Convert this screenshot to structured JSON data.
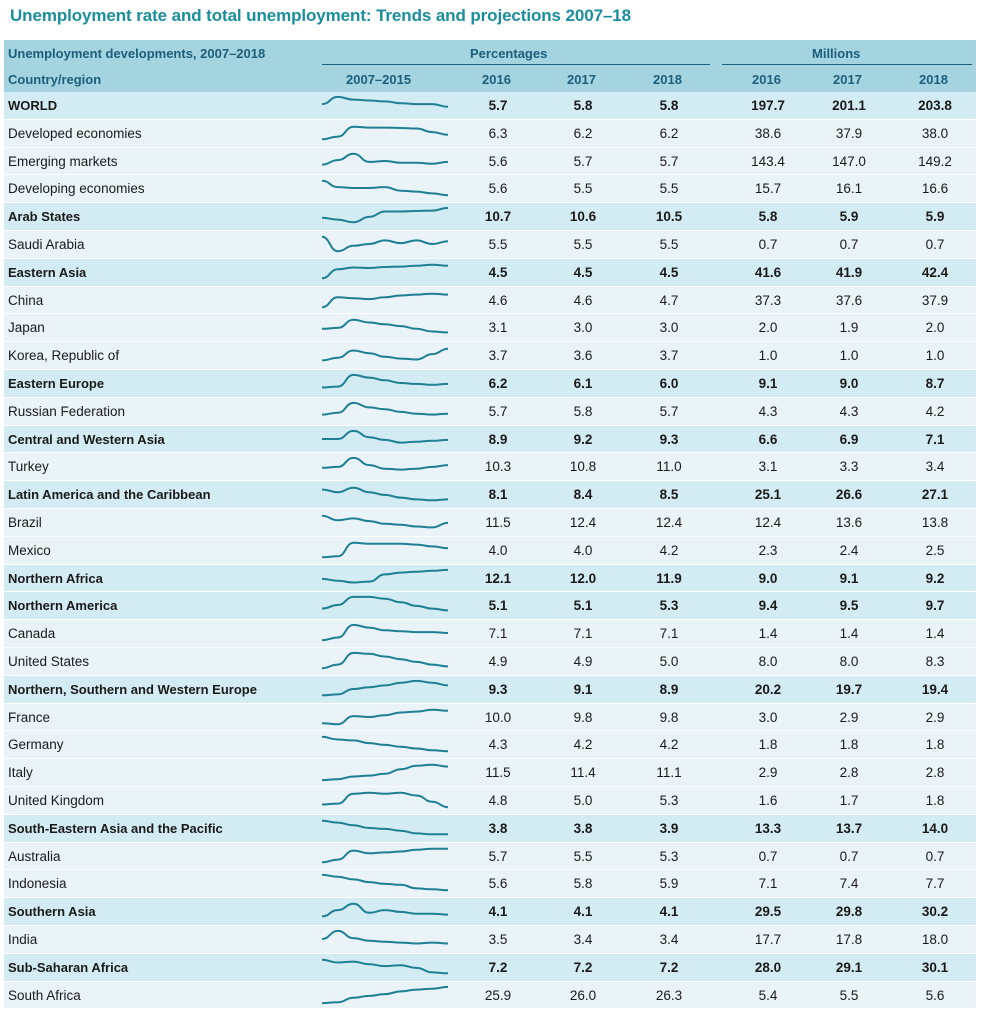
{
  "title": "Unemployment rate and total unemployment: Trends and projections 2007–18",
  "header": {
    "caption": "Unemployment developments, 2007–2018",
    "percentages": "Percentages",
    "millions": "Millions",
    "country_region": "Country/region",
    "trend": "2007–2015",
    "y2016": "2016",
    "y2017": "2017",
    "y2018": "2018",
    "m2016": "2016",
    "m2017": "2017",
    "m2018": "2018"
  },
  "colors": {
    "accent": "#1b8e9e",
    "header_bg": "#a5d4e1",
    "bold_row_bg": "#d3ebf2",
    "row_bg": "#e9f3f8",
    "spark": "#1f7f94"
  },
  "rows": [
    {
      "name": "WORLD",
      "bold": true,
      "p16": "5.7",
      "p17": "5.8",
      "p18": "5.8",
      "m16": "197.7",
      "m17": "201.1",
      "m18": "203.8",
      "trend": [
        0.55,
        0.95,
        0.8,
        0.75,
        0.7,
        0.6,
        0.55,
        0.55,
        0.4
      ]
    },
    {
      "name": "Developed economies",
      "bold": false,
      "p16": "6.3",
      "p17": "6.2",
      "p18": "6.2",
      "m16": "38.6",
      "m17": "37.9",
      "m18": "38.0",
      "trend": [
        0.15,
        0.3,
        0.85,
        0.8,
        0.8,
        0.78,
        0.75,
        0.55,
        0.4
      ]
    },
    {
      "name": "Emerging markets",
      "bold": false,
      "p16": "5.6",
      "p17": "5.7",
      "p18": "5.7",
      "m16": "143.4",
      "m17": "147.0",
      "m18": "149.2",
      "trend": [
        0.3,
        0.55,
        0.9,
        0.45,
        0.5,
        0.4,
        0.4,
        0.35,
        0.45
      ]
    },
    {
      "name": "Developing economies",
      "bold": false,
      "p16": "5.6",
      "p17": "5.5",
      "p18": "5.5",
      "m16": "15.7",
      "m17": "16.1",
      "m18": "16.6",
      "trend": [
        0.9,
        0.55,
        0.5,
        0.5,
        0.55,
        0.35,
        0.3,
        0.2,
        0.1
      ]
    },
    {
      "name": "Arab States",
      "bold": true,
      "p16": "10.7",
      "p17": "10.6",
      "p18": "10.5",
      "m16": "5.8",
      "m17": "5.9",
      "m18": "5.9",
      "trend": [
        0.4,
        0.3,
        0.15,
        0.45,
        0.75,
        0.75,
        0.78,
        0.8,
        0.95
      ]
    },
    {
      "name": "Saudi Arabia",
      "bold": false,
      "p16": "5.5",
      "p17": "5.5",
      "p18": "5.5",
      "m16": "0.7",
      "m17": "0.7",
      "m18": "0.7",
      "trend": [
        0.9,
        0.1,
        0.4,
        0.5,
        0.7,
        0.55,
        0.7,
        0.5,
        0.65
      ]
    },
    {
      "name": "Eastern Asia",
      "bold": true,
      "p16": "4.5",
      "p17": "4.5",
      "p18": "4.5",
      "m16": "41.6",
      "m17": "41.9",
      "m18": "42.4",
      "trend": [
        0.15,
        0.65,
        0.75,
        0.72,
        0.78,
        0.8,
        0.85,
        0.9,
        0.85
      ]
    },
    {
      "name": "China",
      "bold": false,
      "p16": "4.6",
      "p17": "4.6",
      "p18": "4.7",
      "m16": "37.3",
      "m17": "37.6",
      "m18": "37.9",
      "trend": [
        0.1,
        0.65,
        0.6,
        0.55,
        0.65,
        0.75,
        0.8,
        0.85,
        0.8
      ]
    },
    {
      "name": "Japan",
      "bold": false,
      "p16": "3.1",
      "p17": "3.0",
      "p18": "3.0",
      "m16": "2.0",
      "m17": "1.9",
      "m18": "2.0",
      "trend": [
        0.4,
        0.45,
        0.9,
        0.75,
        0.65,
        0.55,
        0.4,
        0.25,
        0.2
      ]
    },
    {
      "name": "Korea, Republic of",
      "bold": false,
      "p16": "3.7",
      "p17": "3.6",
      "p18": "3.7",
      "m16": "1.0",
      "m17": "1.0",
      "m18": "1.0",
      "trend": [
        0.2,
        0.35,
        0.75,
        0.6,
        0.4,
        0.3,
        0.25,
        0.55,
        0.85
      ]
    },
    {
      "name": "Eastern Europe",
      "bold": true,
      "p16": "6.2",
      "p17": "6.1",
      "p18": "6.0",
      "m16": "9.1",
      "m17": "9.0",
      "m18": "8.7",
      "trend": [
        0.25,
        0.3,
        0.95,
        0.8,
        0.65,
        0.5,
        0.45,
        0.4,
        0.45
      ]
    },
    {
      "name": "Russian Federation",
      "bold": false,
      "p16": "5.7",
      "p17": "5.8",
      "p18": "5.7",
      "m16": "4.3",
      "m17": "4.3",
      "m18": "4.2",
      "trend": [
        0.3,
        0.4,
        0.95,
        0.7,
        0.6,
        0.45,
        0.35,
        0.3,
        0.35
      ]
    },
    {
      "name": "Central and Western Asia",
      "bold": true,
      "p16": "8.9",
      "p17": "9.2",
      "p18": "9.3",
      "m16": "6.6",
      "m17": "6.9",
      "m18": "7.1",
      "trend": [
        0.5,
        0.5,
        0.95,
        0.6,
        0.45,
        0.3,
        0.35,
        0.4,
        0.45
      ]
    },
    {
      "name": "Turkey",
      "bold": false,
      "p16": "10.3",
      "p17": "10.8",
      "p18": "11.0",
      "m16": "3.1",
      "m17": "3.3",
      "m18": "3.4",
      "trend": [
        0.4,
        0.45,
        0.95,
        0.55,
        0.35,
        0.3,
        0.35,
        0.45,
        0.55
      ]
    },
    {
      "name": "Latin America and the Caribbean",
      "bold": true,
      "p16": "8.1",
      "p17": "8.4",
      "p18": "8.5",
      "m16": "25.1",
      "m17": "26.6",
      "m18": "27.1",
      "trend": [
        0.75,
        0.6,
        0.85,
        0.6,
        0.45,
        0.3,
        0.2,
        0.15,
        0.2
      ]
    },
    {
      "name": "Brazil",
      "bold": false,
      "p16": "11.5",
      "p17": "12.4",
      "p18": "12.4",
      "m16": "12.4",
      "m17": "13.6",
      "m18": "13.8",
      "trend": [
        0.85,
        0.6,
        0.7,
        0.55,
        0.4,
        0.35,
        0.25,
        0.2,
        0.45
      ]
    },
    {
      "name": "Mexico",
      "bold": false,
      "p16": "4.0",
      "p17": "4.0",
      "p18": "4.2",
      "m16": "2.3",
      "m17": "2.4",
      "m18": "2.5",
      "trend": [
        0.1,
        0.15,
        0.9,
        0.85,
        0.85,
        0.85,
        0.8,
        0.7,
        0.6
      ]
    },
    {
      "name": "Northern Africa",
      "bold": true,
      "p16": "12.1",
      "p17": "12.0",
      "p18": "11.9",
      "m16": "9.0",
      "m17": "9.1",
      "m18": "9.2",
      "trend": [
        0.45,
        0.35,
        0.25,
        0.3,
        0.7,
        0.8,
        0.85,
        0.9,
        0.95
      ]
    },
    {
      "name": "Northern America",
      "bold": true,
      "p16": "5.1",
      "p17": "5.1",
      "p18": "5.3",
      "m16": "9.4",
      "m17": "9.5",
      "m18": "9.7",
      "trend": [
        0.3,
        0.5,
        0.95,
        0.95,
        0.85,
        0.65,
        0.45,
        0.3,
        0.2
      ]
    },
    {
      "name": "Canada",
      "bold": false,
      "p16": "7.1",
      "p17": "7.1",
      "p18": "7.1",
      "m16": "1.4",
      "m17": "1.4",
      "m18": "1.4",
      "trend": [
        0.1,
        0.25,
        0.95,
        0.8,
        0.65,
        0.6,
        0.55,
        0.55,
        0.5
      ]
    },
    {
      "name": "United States",
      "bold": false,
      "p16": "4.9",
      "p17": "4.9",
      "p18": "5.0",
      "m16": "8.0",
      "m17": "8.0",
      "m18": "8.3",
      "trend": [
        0.1,
        0.3,
        0.95,
        0.9,
        0.75,
        0.6,
        0.45,
        0.3,
        0.2
      ]
    },
    {
      "name": "Northern, Southern and Western Europe",
      "bold": true,
      "p16": "9.3",
      "p17": "9.1",
      "p18": "8.9",
      "m16": "20.2",
      "m17": "19.7",
      "m18": "19.4",
      "trend": [
        0.15,
        0.2,
        0.5,
        0.6,
        0.7,
        0.85,
        0.95,
        0.85,
        0.7
      ]
    },
    {
      "name": "France",
      "bold": false,
      "p16": "10.0",
      "p17": "9.8",
      "p18": "9.8",
      "m16": "3.0",
      "m17": "2.9",
      "m18": "2.9",
      "trend": [
        0.15,
        0.1,
        0.55,
        0.5,
        0.6,
        0.75,
        0.8,
        0.9,
        0.85
      ]
    },
    {
      "name": "Germany",
      "bold": false,
      "p16": "4.3",
      "p17": "4.2",
      "p18": "4.2",
      "m16": "1.8",
      "m17": "1.8",
      "m18": "1.8",
      "trend": [
        0.9,
        0.75,
        0.7,
        0.55,
        0.45,
        0.35,
        0.25,
        0.15,
        0.1
      ]
    },
    {
      "name": "Italy",
      "bold": false,
      "p16": "11.5",
      "p17": "11.4",
      "p18": "11.1",
      "m16": "2.9",
      "m17": "2.8",
      "m18": "2.8",
      "trend": [
        0.05,
        0.1,
        0.25,
        0.3,
        0.4,
        0.65,
        0.85,
        0.9,
        0.8
      ]
    },
    {
      "name": "United Kingdom",
      "bold": false,
      "p16": "4.8",
      "p17": "5.0",
      "p18": "5.3",
      "m16": "1.6",
      "m17": "1.7",
      "m18": "1.8",
      "trend": [
        0.25,
        0.3,
        0.85,
        0.9,
        0.85,
        0.9,
        0.75,
        0.4,
        0.1
      ]
    },
    {
      "name": "South-Eastern Asia and the Pacific",
      "bold": true,
      "p16": "3.8",
      "p17": "3.8",
      "p18": "3.9",
      "m16": "13.3",
      "m17": "13.7",
      "m18": "14.0",
      "trend": [
        0.9,
        0.8,
        0.65,
        0.5,
        0.45,
        0.35,
        0.2,
        0.15,
        0.15
      ]
    },
    {
      "name": "Australia",
      "bold": false,
      "p16": "5.7",
      "p17": "5.5",
      "p18": "5.3",
      "m16": "0.7",
      "m17": "0.7",
      "m18": "0.7",
      "trend": [
        0.15,
        0.3,
        0.8,
        0.65,
        0.7,
        0.75,
        0.85,
        0.9,
        0.9
      ]
    },
    {
      "name": "Indonesia",
      "bold": false,
      "p16": "5.6",
      "p17": "5.8",
      "p18": "5.9",
      "m16": "7.1",
      "m17": "7.4",
      "m18": "7.7",
      "trend": [
        0.95,
        0.85,
        0.7,
        0.55,
        0.45,
        0.4,
        0.2,
        0.15,
        0.1
      ]
    },
    {
      "name": "Southern Asia",
      "bold": true,
      "p16": "4.1",
      "p17": "4.1",
      "p18": "4.1",
      "m16": "29.5",
      "m17": "29.8",
      "m18": "30.2",
      "trend": [
        0.2,
        0.55,
        0.9,
        0.4,
        0.55,
        0.45,
        0.35,
        0.35,
        0.3
      ]
    },
    {
      "name": "India",
      "bold": false,
      "p16": "3.5",
      "p17": "3.4",
      "p18": "3.4",
      "m16": "17.7",
      "m17": "17.8",
      "m18": "18.0",
      "trend": [
        0.5,
        0.95,
        0.55,
        0.4,
        0.35,
        0.3,
        0.25,
        0.3,
        0.25
      ]
    },
    {
      "name": "Sub-Saharan Africa",
      "bold": true,
      "p16": "7.2",
      "p17": "7.2",
      "p18": "7.2",
      "m16": "28.0",
      "m17": "29.1",
      "m18": "30.1",
      "trend": [
        0.9,
        0.75,
        0.8,
        0.65,
        0.55,
        0.6,
        0.45,
        0.2,
        0.15
      ]
    },
    {
      "name": "South Africa",
      "bold": false,
      "p16": "25.9",
      "p17": "26.0",
      "p18": "26.3",
      "m16": "5.4",
      "m17": "5.5",
      "m18": "5.6",
      "trend": [
        0.05,
        0.1,
        0.35,
        0.45,
        0.55,
        0.7,
        0.8,
        0.85,
        0.95
      ]
    }
  ]
}
